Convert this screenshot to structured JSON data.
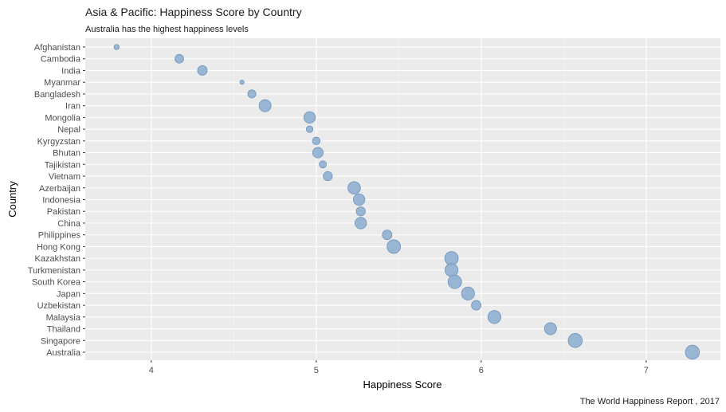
{
  "chart_data": {
    "type": "scatter",
    "title": "Asia & Pacific: Happiness Score by Country",
    "subtitle": "Australia has the highest happiness levels",
    "xlabel": "Happiness Score",
    "ylabel": "Country",
    "caption": "The World Happiness Report , 2017",
    "xlim": [
      3.6,
      7.45
    ],
    "x_ticks": [
      4,
      5,
      6,
      7
    ],
    "grid": true,
    "point_color": "#8fb0d0",
    "point_stroke": "#6e94bb",
    "panel_background": "#ebebeb",
    "categories": [
      "Afghanistan",
      "Cambodia",
      "India",
      "Myanmar",
      "Bangladesh",
      "Iran",
      "Mongolia",
      "Nepal",
      "Kyrgyzstan",
      "Bhutan",
      "Tajikistan",
      "Vietnam",
      "Azerbaijan",
      "Indonesia",
      "Pakistan",
      "China",
      "Philippines",
      "Hong Kong",
      "Kazakhstan",
      "Turkmenistan",
      "South Korea",
      "Japan",
      "Uzbekistan",
      "Malaysia",
      "Thailand",
      "Singapore",
      "Australia"
    ],
    "x": [
      3.79,
      4.17,
      4.31,
      4.55,
      4.61,
      4.69,
      4.96,
      4.96,
      5.0,
      5.01,
      5.04,
      5.07,
      5.23,
      5.26,
      5.27,
      5.27,
      5.43,
      5.47,
      5.82,
      5.82,
      5.84,
      5.92,
      5.97,
      6.08,
      6.42,
      6.57,
      7.28
    ],
    "size": [
      0.2,
      0.55,
      0.65,
      0.1,
      0.5,
      0.9,
      0.85,
      0.35,
      0.45,
      0.75,
      0.4,
      0.6,
      0.95,
      0.85,
      0.6,
      0.85,
      0.65,
      1.05,
      1.05,
      1.0,
      1.05,
      1.0,
      0.65,
      1.0,
      0.9,
      1.1,
      1.1
    ]
  }
}
